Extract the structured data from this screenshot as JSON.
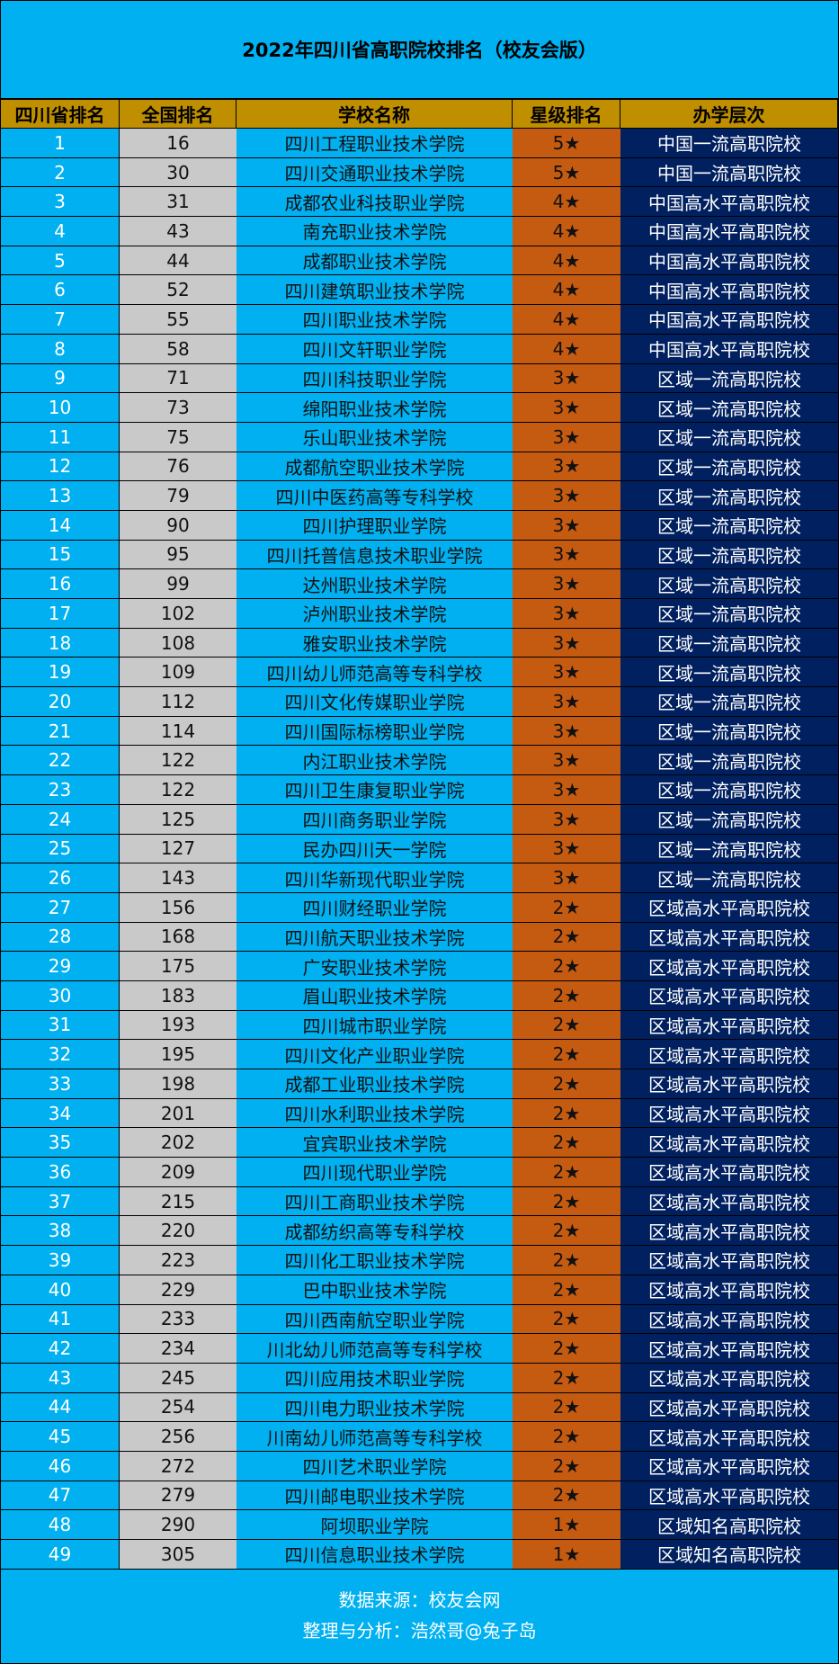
{
  "title": "2022年四川省高职院校排名（校友会版）",
  "headers": [
    "四川省排名",
    "全国排名",
    "学校名称",
    "星级排名",
    "办学层次"
  ],
  "colors": {
    "background": "#00b0f0",
    "header": "#bf8f00",
    "national_col": "#c9c9c9",
    "star_col": "#c55a11",
    "level_col": "#002060"
  },
  "rows": [
    [
      "1",
      "16",
      "四川工程职业技术学院",
      "5★",
      "中国一流高职院校"
    ],
    [
      "2",
      "30",
      "四川交通职业技术学院",
      "5★",
      "中国一流高职院校"
    ],
    [
      "3",
      "31",
      "成都农业科技职业学院",
      "4★",
      "中国高水平高职院校"
    ],
    [
      "4",
      "43",
      "南充职业技术学院",
      "4★",
      "中国高水平高职院校"
    ],
    [
      "5",
      "44",
      "成都职业技术学院",
      "4★",
      "中国高水平高职院校"
    ],
    [
      "6",
      "52",
      "四川建筑职业技术学院",
      "4★",
      "中国高水平高职院校"
    ],
    [
      "7",
      "55",
      "四川职业技术学院",
      "4★",
      "中国高水平高职院校"
    ],
    [
      "8",
      "58",
      "四川文轩职业学院",
      "4★",
      "中国高水平高职院校"
    ],
    [
      "9",
      "71",
      "四川科技职业学院",
      "3★",
      "区域一流高职院校"
    ],
    [
      "10",
      "73",
      "绵阳职业技术学院",
      "3★",
      "区域一流高职院校"
    ],
    [
      "11",
      "75",
      "乐山职业技术学院",
      "3★",
      "区域一流高职院校"
    ],
    [
      "12",
      "76",
      "成都航空职业技术学院",
      "3★",
      "区域一流高职院校"
    ],
    [
      "13",
      "79",
      "四川中医药高等专科学校",
      "3★",
      "区域一流高职院校"
    ],
    [
      "14",
      "90",
      "四川护理职业学院",
      "3★",
      "区域一流高职院校"
    ],
    [
      "15",
      "95",
      "四川托普信息技术职业学院",
      "3★",
      "区域一流高职院校"
    ],
    [
      "16",
      "99",
      "达州职业技术学院",
      "3★",
      "区域一流高职院校"
    ],
    [
      "17",
      "102",
      "泸州职业技术学院",
      "3★",
      "区域一流高职院校"
    ],
    [
      "18",
      "108",
      "雅安职业技术学院",
      "3★",
      "区域一流高职院校"
    ],
    [
      "19",
      "109",
      "四川幼儿师范高等专科学校",
      "3★",
      "区域一流高职院校"
    ],
    [
      "20",
      "112",
      "四川文化传媒职业学院",
      "3★",
      "区域一流高职院校"
    ],
    [
      "21",
      "114",
      "四川国际标榜职业学院",
      "3★",
      "区域一流高职院校"
    ],
    [
      "22",
      "122",
      "内江职业技术学院",
      "3★",
      "区域一流高职院校"
    ],
    [
      "23",
      "122",
      "四川卫生康复职业学院",
      "3★",
      "区域一流高职院校"
    ],
    [
      "24",
      "125",
      "四川商务职业学院",
      "3★",
      "区域一流高职院校"
    ],
    [
      "25",
      "127",
      "民办四川天一学院",
      "3★",
      "区域一流高职院校"
    ],
    [
      "26",
      "143",
      "四川华新现代职业学院",
      "3★",
      "区域一流高职院校"
    ],
    [
      "27",
      "156",
      "四川财经职业学院",
      "2★",
      "区域高水平高职院校"
    ],
    [
      "28",
      "168",
      "四川航天职业技术学院",
      "2★",
      "区域高水平高职院校"
    ],
    [
      "29",
      "175",
      "广安职业技术学院",
      "2★",
      "区域高水平高职院校"
    ],
    [
      "30",
      "183",
      "眉山职业技术学院",
      "2★",
      "区域高水平高职院校"
    ],
    [
      "31",
      "193",
      "四川城市职业学院",
      "2★",
      "区域高水平高职院校"
    ],
    [
      "32",
      "195",
      "四川文化产业职业学院",
      "2★",
      "区域高水平高职院校"
    ],
    [
      "33",
      "198",
      "成都工业职业技术学院",
      "2★",
      "区域高水平高职院校"
    ],
    [
      "34",
      "201",
      "四川水利职业技术学院",
      "2★",
      "区域高水平高职院校"
    ],
    [
      "35",
      "202",
      "宜宾职业技术学院",
      "2★",
      "区域高水平高职院校"
    ],
    [
      "36",
      "209",
      "四川现代职业学院",
      "2★",
      "区域高水平高职院校"
    ],
    [
      "37",
      "215",
      "四川工商职业技术学院",
      "2★",
      "区域高水平高职院校"
    ],
    [
      "38",
      "220",
      "成都纺织高等专科学校",
      "2★",
      "区域高水平高职院校"
    ],
    [
      "39",
      "223",
      "四川化工职业技术学院",
      "2★",
      "区域高水平高职院校"
    ],
    [
      "40",
      "229",
      "巴中职业技术学院",
      "2★",
      "区域高水平高职院校"
    ],
    [
      "41",
      "233",
      "四川西南航空职业学院",
      "2★",
      "区域高水平高职院校"
    ],
    [
      "42",
      "234",
      "川北幼儿师范高等专科学校",
      "2★",
      "区域高水平高职院校"
    ],
    [
      "43",
      "245",
      "四川应用技术职业学院",
      "2★",
      "区域高水平高职院校"
    ],
    [
      "44",
      "254",
      "四川电力职业技术学院",
      "2★",
      "区域高水平高职院校"
    ],
    [
      "45",
      "256",
      "川南幼儿师范高等专科学校",
      "2★",
      "区域高水平高职院校"
    ],
    [
      "46",
      "272",
      "四川艺术职业学院",
      "2★",
      "区域高水平高职院校"
    ],
    [
      "47",
      "279",
      "四川邮电职业技术学院",
      "2★",
      "区域高水平高职院校"
    ],
    [
      "48",
      "290",
      "阿坝职业学院",
      "1★",
      "区域知名高职院校"
    ],
    [
      "49",
      "305",
      "四川信息职业技术学院",
      "1★",
      "区域知名高职院校"
    ]
  ],
  "footer": {
    "source": "数据来源：校友会网",
    "author": "整理与分析：浩然哥@兔子岛"
  }
}
